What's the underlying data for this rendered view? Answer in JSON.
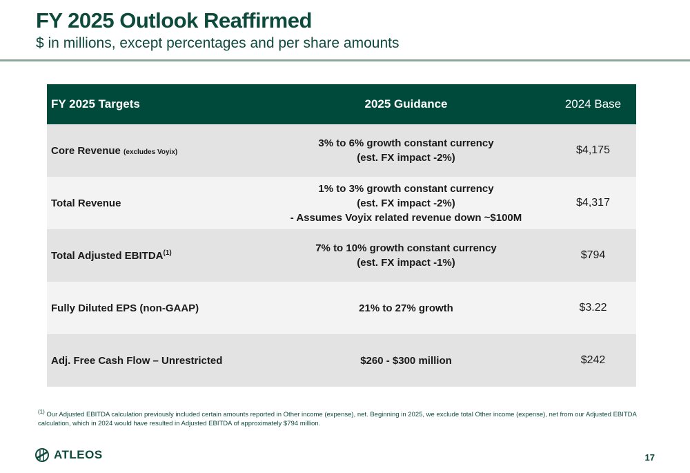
{
  "header": {
    "title": "FY 2025 Outlook Reaffirmed",
    "subtitle": "$ in millions, except percentages and per share amounts"
  },
  "table": {
    "headers": [
      "FY 2025 Targets",
      "2025 Guidance",
      "2024 Base"
    ],
    "rows": [
      {
        "target": "Core Revenue",
        "target_note": "(excludes Voyix)",
        "guidance": [
          "3% to 6% growth constant currency",
          "(est. FX impact -2%)"
        ],
        "base": "$4,175"
      },
      {
        "target": "Total Revenue",
        "guidance": [
          "1% to 3% growth constant currency",
          "(est. FX impact -2%)",
          "- Assumes Voyix related revenue down ~$100M"
        ],
        "base": "$4,317"
      },
      {
        "target": "Total Adjusted EBITDA",
        "target_sup": "(1)",
        "guidance": [
          "7% to 10% growth constant currency",
          "(est. FX impact -1%)"
        ],
        "base": "$794"
      },
      {
        "target": "Fully Diluted EPS (non-GAAP)",
        "guidance": [
          "21% to 27% growth"
        ],
        "base": "$3.22"
      },
      {
        "target": "Adj. Free Cash Flow – Unrestricted",
        "guidance": [
          "$260 - $300 million"
        ],
        "base": "$242"
      }
    ]
  },
  "footnote": {
    "marker": "(1)",
    "text": "Our Adjusted EBITDA calculation previously included certain amounts reported in Other income (expense), net. Beginning in 2025, we exclude total Other income (expense), net from our Adjusted EBITDA calculation, which in 2024 would have resulted in Adjusted EBITDA of approximately $794 million."
  },
  "footer": {
    "logo_text": "ATLEOS",
    "logo_icon": "atleos-globe-icon",
    "page_number": "17"
  },
  "colors": {
    "brand_green": "#004a3c",
    "title_green": "#0d4a3c",
    "rule": "#8aa79a",
    "row_dark": "#e3e3e3",
    "row_light": "#f3f3f3"
  }
}
